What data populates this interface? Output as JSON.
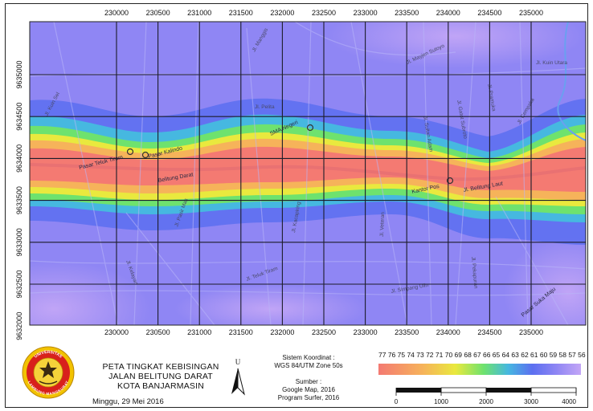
{
  "map": {
    "x_ticks": [
      "230000",
      "230500",
      "231000",
      "231500",
      "232000",
      "232500",
      "233000",
      "233500",
      "234000",
      "234500",
      "235000"
    ],
    "y_ticks": [
      "9635000",
      "9634500",
      "9634000",
      "9633500",
      "9633000",
      "9632500",
      "9632000"
    ],
    "streets": [
      "Jl. Kuin Sel",
      "Jl. Pelita",
      "Jl. Kelayan",
      "Jl. Pasir Mas",
      "Jl. Teluk Tiram",
      "Jl. Kacapiring",
      "Jl. Veteran",
      "Jl. Simpang Ulin",
      "Jl. Mayjen Sutoyo",
      "Jl. Sultan Adam",
      "Jl. Gatot Subroto",
      "Jl. Pramuka",
      "Jl. Cempaka",
      "Jl. Pekapuran",
      "Jl. Kuin Utara",
      "Jl. Manggis"
    ],
    "places": [
      "Pasar Teluk Tiram",
      "Pasar Kalindo",
      "SMA Negeri",
      "Kantor Pos",
      "Belitung Darat",
      "Jl. Belitung Laut",
      "Pasar Suka Maju"
    ]
  },
  "legend": {
    "title_lines": [
      "PETA TINGKAT KEBISINGAN",
      "JALAN BELITUNG DARAT",
      "KOTA BANJARMASIN"
    ],
    "date": "Minggu, 29 Mei 2016",
    "north_label": "U",
    "coord_title": "Sistem Koordinat :",
    "coord_value": "WGS 84/UTM Zone 50s",
    "source_title": "Sumber :",
    "source_lines": [
      "Google Map, 2016",
      "Program Surfer, 2016"
    ],
    "noise_values": "77 76 75 74 73 72 71 70 69 68 67 66 65 64 63 62 61 60 59 58 57 56",
    "scale_labels": [
      "0",
      "1000",
      "2000",
      "3000",
      "4000"
    ],
    "logo_text_top": "UNIVERSITAS",
    "logo_text_bottom": "LAMBUNG MANGKURAT"
  },
  "colors": {
    "high": "#f47a72",
    "mid_high": "#f6b35a",
    "mid": "#e9e93e",
    "mid_low": "#6ee26e",
    "low": "#46b8e0",
    "base": "#5c6ff0",
    "background": "#8f86f4",
    "lowest": "#c3a6f6"
  }
}
